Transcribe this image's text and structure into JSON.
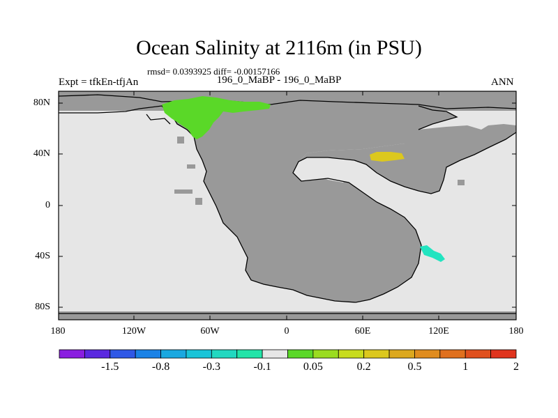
{
  "title": "Ocean Salinity at 2116m (in PSU)",
  "stats_line": "rmsd= 0.0393925 diff= -0.00157166",
  "left_label": "Expt = tfkEn-tfjAn",
  "center_label": "196_0_MaBP - 196_0_MaBP",
  "right_label": "ANN",
  "lat_ticks": [
    "80N",
    "40N",
    "0",
    "40S",
    "80S"
  ],
  "lon_ticks": [
    "180",
    "120W",
    "60W",
    "0",
    "60E",
    "120E",
    "180"
  ],
  "colorbar": {
    "colors": [
      "#8a1ee0",
      "#5a28e0",
      "#2f58e6",
      "#1a82e6",
      "#1aa8e0",
      "#19c4d8",
      "#22d8c0",
      "#22e4a8",
      "#e6e6e6",
      "#5ad828",
      "#9adc20",
      "#c8dc1e",
      "#dcc81e",
      "#dca81e",
      "#e08c1e",
      "#e0701e",
      "#e0501e",
      "#e0341e"
    ],
    "labels": [
      "-1.5",
      "-0.8",
      "-0.3",
      "-0.1",
      "0.05",
      "0.2",
      "0.5",
      "1",
      "2"
    ]
  },
  "map_colors": {
    "land": "#999999",
    "ocean_neutral": "#e6e6e6",
    "green_anomaly": "#5ad828",
    "yellow_anomaly": "#dcc81e",
    "cyan_anomaly": "#22e4c0",
    "coastline": "#000000"
  }
}
